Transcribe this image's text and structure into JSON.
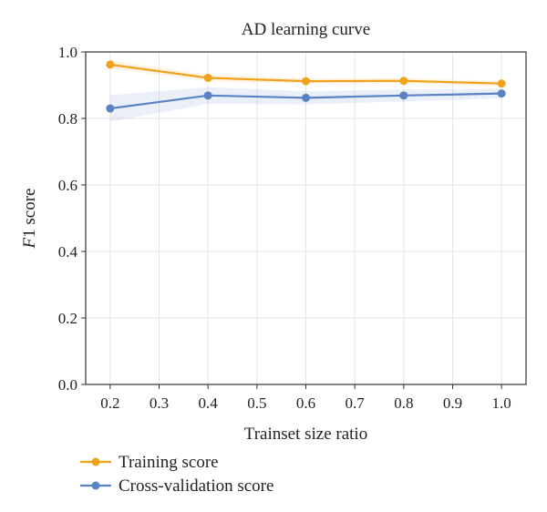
{
  "chart_data": {
    "type": "line",
    "title": "AD learning curve",
    "xlabel": "Trainset size ratio",
    "ylabel": "F1 score",
    "xlim": [
      0.15,
      1.05
    ],
    "ylim": [
      0.0,
      1.0
    ],
    "xticks": [
      "0.2",
      "0.3",
      "0.4",
      "0.5",
      "0.6",
      "0.7",
      "0.8",
      "0.9",
      "1.0"
    ],
    "yticks": [
      "0.0",
      "0.2",
      "0.4",
      "0.6",
      "0.8",
      "1.0"
    ],
    "grid": true,
    "legend_position": "bottom-left",
    "x": [
      0.2,
      0.4,
      0.6,
      0.8,
      1.0
    ],
    "series": [
      {
        "name": "Training score",
        "color": "#f0a21d",
        "values": [
          0.962,
          0.922,
          0.912,
          0.913,
          0.905
        ],
        "band_half_width": [
          0.012,
          0.01,
          0.008,
          0.008,
          0.008
        ]
      },
      {
        "name": "Cross-validation score",
        "color": "#5b82c2",
        "values": [
          0.83,
          0.869,
          0.862,
          0.869,
          0.875
        ],
        "band_half_width": [
          0.04,
          0.025,
          0.02,
          0.018,
          0.015
        ]
      }
    ]
  }
}
